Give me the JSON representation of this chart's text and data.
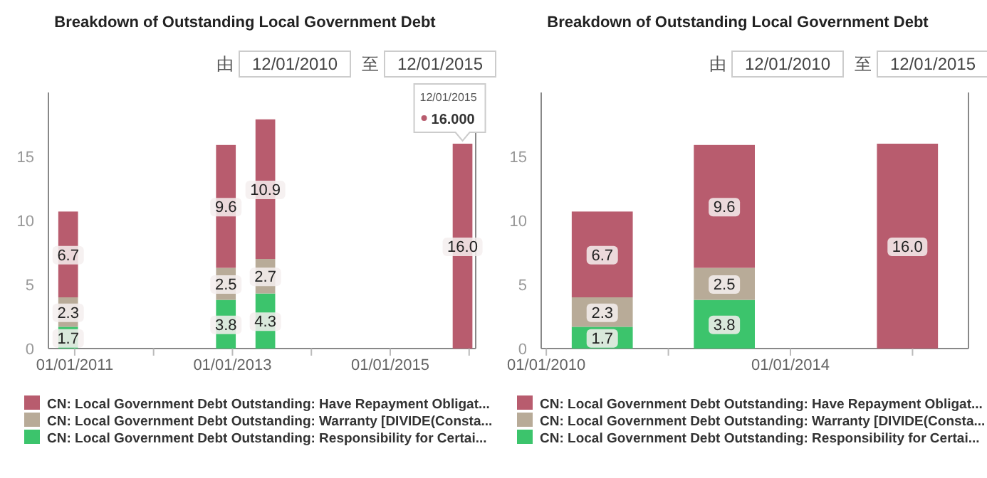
{
  "chart_data": [
    {
      "type": "bar",
      "title": "Breakdown of Outstanding Local Government Debt",
      "stacked": true,
      "x": [
        "2010-12",
        "2012-12",
        "2013-06",
        "2015-12"
      ],
      "series": [
        {
          "name": "CN: Local Government Debt Outstanding: Responsibility for Certai...",
          "color": "#3cc46c",
          "values": [
            1.7,
            3.8,
            4.3,
            null
          ],
          "value_labels": [
            "1.7",
            "3.8",
            "4.3",
            null
          ]
        },
        {
          "name": "CN: Local Government Debt Outstanding: Warranty [DIVIDE(Consta...",
          "color": "#b8ab98",
          "values": [
            2.3,
            2.5,
            2.7,
            null
          ],
          "value_labels": [
            "2.3",
            "2.5",
            "2.7",
            null
          ]
        },
        {
          "name": "CN: Local Government Debt Outstanding: Have Repayment Obligat...",
          "color": "#b85c6e",
          "values": [
            6.7,
            9.6,
            10.9,
            16.0
          ],
          "value_labels": [
            "6.7",
            "9.6",
            "10.9",
            "16.0"
          ]
        }
      ],
      "xlim": [
        "2010-09",
        "2016-02"
      ],
      "xticks": [
        {
          "value": "2011-01-01",
          "label": "01/01/2011"
        },
        {
          "value": "2012-01-01",
          "label": null
        },
        {
          "value": "2013-01-01",
          "label": "01/01/2013"
        },
        {
          "value": "2014-01-01",
          "label": null
        },
        {
          "value": "2015-01-01",
          "label": "01/01/2015"
        },
        {
          "value": "2016-01-01",
          "label": null
        }
      ],
      "ylim": [
        0,
        20
      ],
      "yticks": [
        0,
        5,
        10,
        15
      ],
      "grid": false,
      "legend": "bottom",
      "annotations": [
        "由",
        "12/01/2010",
        "至",
        "12/01/2015",
        {
          "text": "12/01/2015\n16.000",
          "x": "2015-12",
          "y": 16.0
        }
      ]
    },
    {
      "type": "bar",
      "title": "Breakdown of Outstanding Local Government Debt",
      "stacked": true,
      "x": [
        "2010-12",
        "2012-12",
        "2015-12"
      ],
      "series": [
        {
          "name": "CN: Local Government Debt Outstanding: Responsibility for Certai...",
          "color": "#3cc46c",
          "values": [
            1.7,
            3.8,
            null
          ],
          "value_labels": [
            "1.7",
            "3.8",
            null
          ]
        },
        {
          "name": "CN: Local Government Debt Outstanding: Warranty [DIVIDE(Consta...",
          "color": "#b8ab98",
          "values": [
            2.3,
            2.5,
            null
          ],
          "value_labels": [
            "2.3",
            "2.5",
            null
          ]
        },
        {
          "name": "CN: Local Government Debt Outstanding: Have Repayment Obligat...",
          "color": "#b85c6e",
          "values": [
            6.7,
            9.6,
            16.0
          ],
          "value_labels": [
            "6.7",
            "9.6",
            "16.0"
          ]
        }
      ],
      "xlim": [
        "2009-12",
        "2016-12"
      ],
      "xticks": [
        {
          "value": "2010-01-01",
          "label": "01/01/2010"
        },
        {
          "value": "2012-01-01",
          "label": null
        },
        {
          "value": "2014-01-01",
          "label": "01/01/2014"
        },
        {
          "value": "2016-01-01",
          "label": null
        }
      ],
      "ylim": [
        0,
        20
      ],
      "yticks": [
        0,
        5,
        10,
        15
      ],
      "grid": false,
      "legend": "bottom",
      "annotations": [
        "由",
        "12/01/2010",
        "至",
        "12/01/2015"
      ]
    }
  ]
}
